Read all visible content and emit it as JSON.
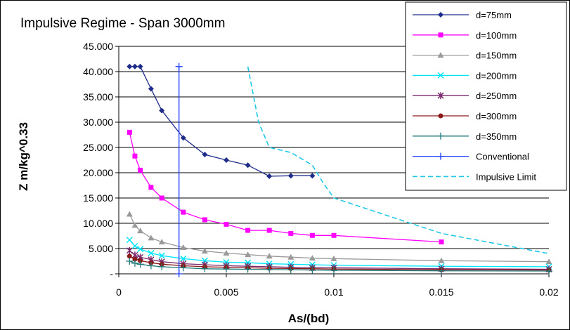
{
  "chart_data": {
    "type": "line",
    "title": "Impulsive Regime - Span 3000mm",
    "xlabel": "As/(bd)",
    "ylabel": "Z m/kg^0.33",
    "xlim": [
      0,
      0.02
    ],
    "ylim": [
      0,
      45
    ],
    "x_ticks": [
      0,
      0.005,
      0.01,
      0.015,
      0.02
    ],
    "x_tick_labels": [
      "0",
      "0.005",
      "0.01",
      "0.015",
      "0.02"
    ],
    "y_ticks": [
      0,
      5,
      10,
      15,
      20,
      25,
      30,
      35,
      40,
      45
    ],
    "y_tick_labels": [
      "-",
      "5.000",
      "10.000",
      "15.000",
      "20.000",
      "25.000",
      "30.000",
      "35.000",
      "40.000",
      "45.000"
    ],
    "grid": "horizontal",
    "legend_position": "top-right",
    "series": [
      {
        "name": "d=75mm",
        "color": "#1f2d8a",
        "marker": "diamond",
        "dash": "none",
        "points": [
          [
            0.0005,
            41.0
          ],
          [
            0.00075,
            41.0
          ],
          [
            0.001,
            41.0
          ],
          [
            0.0015,
            36.6
          ],
          [
            0.002,
            32.3
          ],
          [
            0.003,
            26.9
          ],
          [
            0.004,
            23.6
          ],
          [
            0.005,
            22.5
          ],
          [
            0.006,
            21.5
          ],
          [
            0.007,
            19.3
          ],
          [
            0.008,
            19.4
          ],
          [
            0.009,
            19.4
          ]
        ]
      },
      {
        "name": "d=100mm",
        "color": "#ff00ff",
        "marker": "square",
        "dash": "none",
        "points": [
          [
            0.0005,
            28.0
          ],
          [
            0.00075,
            23.3
          ],
          [
            0.001,
            20.5
          ],
          [
            0.0015,
            17.1
          ],
          [
            0.002,
            15.0
          ],
          [
            0.003,
            12.2
          ],
          [
            0.004,
            10.7
          ],
          [
            0.005,
            9.8
          ],
          [
            0.006,
            8.6
          ],
          [
            0.007,
            8.6
          ],
          [
            0.008,
            8.0
          ],
          [
            0.009,
            7.6
          ],
          [
            0.01,
            7.6
          ],
          [
            0.015,
            6.3
          ]
        ]
      },
      {
        "name": "d=150mm",
        "color": "#9a9a9a",
        "marker": "triangle",
        "dash": "none",
        "points": [
          [
            0.0005,
            11.8
          ],
          [
            0.00075,
            9.6
          ],
          [
            0.001,
            8.5
          ],
          [
            0.0015,
            7.1
          ],
          [
            0.002,
            6.3
          ],
          [
            0.003,
            5.2
          ],
          [
            0.004,
            4.5
          ],
          [
            0.005,
            4.1
          ],
          [
            0.006,
            3.8
          ],
          [
            0.007,
            3.5
          ],
          [
            0.008,
            3.3
          ],
          [
            0.009,
            3.1
          ],
          [
            0.01,
            3.0
          ],
          [
            0.015,
            2.6
          ],
          [
            0.02,
            2.4
          ]
        ]
      },
      {
        "name": "d=200mm",
        "color": "#00e5ff",
        "marker": "x",
        "dash": "none",
        "points": [
          [
            0.0005,
            6.7
          ],
          [
            0.00075,
            5.5
          ],
          [
            0.001,
            4.9
          ],
          [
            0.0015,
            4.1
          ],
          [
            0.002,
            3.6
          ],
          [
            0.003,
            3.0
          ],
          [
            0.004,
            2.6
          ],
          [
            0.005,
            2.3
          ],
          [
            0.006,
            2.2
          ],
          [
            0.007,
            2.0
          ],
          [
            0.008,
            1.9
          ],
          [
            0.009,
            1.8
          ],
          [
            0.01,
            1.7
          ],
          [
            0.015,
            1.5
          ],
          [
            0.02,
            1.4
          ]
        ]
      },
      {
        "name": "d=250mm",
        "color": "#7a2a6e",
        "marker": "star",
        "dash": "none",
        "points": [
          [
            0.0005,
            4.6
          ],
          [
            0.00075,
            3.7
          ],
          [
            0.001,
            3.3
          ],
          [
            0.0015,
            2.8
          ],
          [
            0.002,
            2.4
          ],
          [
            0.003,
            2.0
          ],
          [
            0.004,
            1.8
          ],
          [
            0.005,
            1.6
          ],
          [
            0.006,
            1.5
          ],
          [
            0.007,
            1.4
          ],
          [
            0.008,
            1.3
          ],
          [
            0.009,
            1.2
          ],
          [
            0.01,
            1.2
          ],
          [
            0.015,
            1.0
          ],
          [
            0.02,
            0.9
          ]
        ]
      },
      {
        "name": "d=300mm",
        "color": "#8b1a1a",
        "marker": "circle",
        "dash": "none",
        "points": [
          [
            0.0005,
            3.5
          ],
          [
            0.00075,
            2.9
          ],
          [
            0.001,
            2.6
          ],
          [
            0.0015,
            2.2
          ],
          [
            0.002,
            1.9
          ],
          [
            0.003,
            1.6
          ],
          [
            0.004,
            1.4
          ],
          [
            0.005,
            1.3
          ],
          [
            0.006,
            1.2
          ],
          [
            0.007,
            1.1
          ],
          [
            0.008,
            1.05
          ],
          [
            0.009,
            1.0
          ],
          [
            0.01,
            0.95
          ],
          [
            0.015,
            0.8
          ],
          [
            0.02,
            0.75
          ]
        ]
      },
      {
        "name": "d=350mm",
        "color": "#1f7a7a",
        "marker": "plus",
        "dash": "none",
        "points": [
          [
            0.0005,
            2.5
          ],
          [
            0.00075,
            2.1
          ],
          [
            0.001,
            1.9
          ],
          [
            0.0015,
            1.6
          ],
          [
            0.002,
            1.4
          ],
          [
            0.003,
            1.2
          ],
          [
            0.004,
            1.0
          ],
          [
            0.005,
            0.95
          ],
          [
            0.006,
            0.9
          ],
          [
            0.007,
            0.85
          ],
          [
            0.008,
            0.8
          ],
          [
            0.009,
            0.75
          ],
          [
            0.01,
            0.7
          ],
          [
            0.015,
            0.6
          ],
          [
            0.02,
            0.55
          ]
        ]
      },
      {
        "name": "Conventional",
        "color": "#1a3cff",
        "marker": "plus",
        "dash": "none",
        "points": [
          [
            0.0028,
            0
          ],
          [
            0.0028,
            41.0
          ]
        ]
      },
      {
        "name": "Impulsive Limit",
        "color": "#1ec8e6",
        "marker": "none",
        "dash": "dashed",
        "points": [
          [
            0.006,
            41.0
          ],
          [
            0.0065,
            30.0
          ],
          [
            0.007,
            25.0
          ],
          [
            0.008,
            24.0
          ],
          [
            0.009,
            21.5
          ],
          [
            0.0095,
            18.0
          ],
          [
            0.01,
            15.0
          ],
          [
            0.015,
            8.0
          ],
          [
            0.02,
            4.0
          ]
        ]
      }
    ]
  }
}
